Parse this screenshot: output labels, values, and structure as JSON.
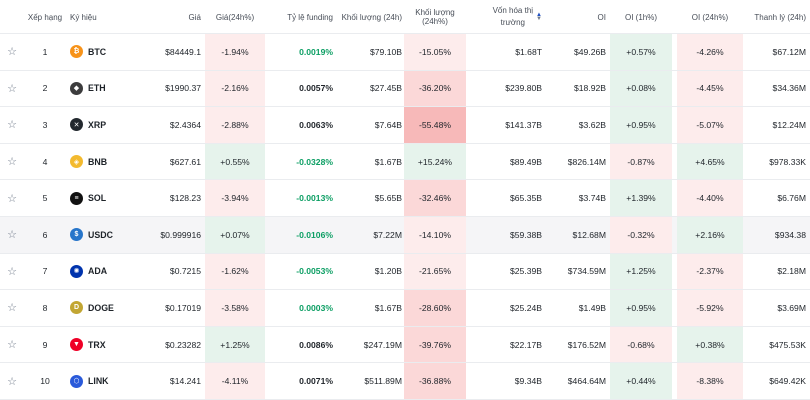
{
  "headers": {
    "rank": "Xếp hạng",
    "symbol": "Ký hiệu",
    "price": "Giá",
    "price_change": "Giá(24h%)",
    "funding": "Tỷ lệ funding",
    "volume": "Khối lượng (24h)",
    "volume_change": "Khối lượng (24h%)",
    "mcap_line1": "Vốn hóa thị",
    "mcap_line2": "trường",
    "oi": "OI",
    "oi_1h": "OI (1h%)",
    "oi_24h": "OI (24h%)",
    "liq": "Thanh lý (24h)"
  },
  "rows": [
    {
      "rank": "1",
      "symbol": "BTC",
      "icon": "₿",
      "color": "#f7931a",
      "price": "$84449.1",
      "pchg": "-1.94%",
      "funding": "0.0019%",
      "fund_color": "green",
      "vol": "$79.10B",
      "vchg": "-15.05%",
      "mcap": "$1.68T",
      "oi": "$49.26B",
      "oi1h": "+0.57%",
      "oi24h": "-4.26%",
      "liq": "$67.12M"
    },
    {
      "rank": "2",
      "symbol": "ETH",
      "icon": "◆",
      "color": "#3c3c3d",
      "price": "$1990.37",
      "pchg": "-2.16%",
      "funding": "0.0057%",
      "fund_color": "dark",
      "vol": "$27.45B",
      "vchg": "-36.20%",
      "mcap": "$239.80B",
      "oi": "$18.92B",
      "oi1h": "+0.08%",
      "oi24h": "-4.45%",
      "liq": "$34.36M"
    },
    {
      "rank": "3",
      "symbol": "XRP",
      "icon": "✕",
      "color": "#23292f",
      "price": "$2.4364",
      "pchg": "-2.88%",
      "funding": "0.0063%",
      "fund_color": "dark",
      "vol": "$7.64B",
      "vchg": "-55.48%",
      "mcap": "$141.37B",
      "oi": "$3.62B",
      "oi1h": "+0.95%",
      "oi24h": "-5.07%",
      "liq": "$12.24M"
    },
    {
      "rank": "4",
      "symbol": "BNB",
      "icon": "◈",
      "color": "#f3ba2f",
      "price": "$627.61",
      "pchg": "+0.55%",
      "funding": "-0.0328%",
      "fund_color": "green",
      "vol": "$1.67B",
      "vchg": "+15.24%",
      "mcap": "$89.49B",
      "oi": "$826.14M",
      "oi1h": "-0.87%",
      "oi24h": "+4.65%",
      "liq": "$978.33K"
    },
    {
      "rank": "5",
      "symbol": "SOL",
      "icon": "≡",
      "color": "#111111",
      "price": "$128.23",
      "pchg": "-3.94%",
      "funding": "-0.0013%",
      "fund_color": "green",
      "vol": "$5.65B",
      "vchg": "-32.46%",
      "mcap": "$65.35B",
      "oi": "$3.74B",
      "oi1h": "+1.39%",
      "oi24h": "-4.40%",
      "liq": "$6.76M"
    },
    {
      "rank": "6",
      "symbol": "USDC",
      "icon": "$",
      "color": "#2775ca",
      "price": "$0.999916",
      "pchg": "+0.07%",
      "funding": "-0.0106%",
      "fund_color": "green",
      "vol": "$7.22M",
      "vchg": "-14.10%",
      "mcap": "$59.38B",
      "oi": "$12.68M",
      "oi1h": "-0.32%",
      "oi24h": "+2.16%",
      "liq": "$934.38"
    },
    {
      "rank": "7",
      "symbol": "ADA",
      "icon": "✺",
      "color": "#0033ad",
      "price": "$0.7215",
      "pchg": "-1.62%",
      "funding": "-0.0053%",
      "fund_color": "green",
      "vol": "$1.20B",
      "vchg": "-21.65%",
      "mcap": "$25.39B",
      "oi": "$734.59M",
      "oi1h": "+1.25%",
      "oi24h": "-2.37%",
      "liq": "$2.18M"
    },
    {
      "rank": "8",
      "symbol": "DOGE",
      "icon": "D",
      "color": "#c2a633",
      "price": "$0.17019",
      "pchg": "-3.58%",
      "funding": "0.0003%",
      "fund_color": "green",
      "vol": "$1.67B",
      "vchg": "-28.60%",
      "mcap": "$25.24B",
      "oi": "$1.49B",
      "oi1h": "+0.95%",
      "oi24h": "-5.92%",
      "liq": "$3.69M"
    },
    {
      "rank": "9",
      "symbol": "TRX",
      "icon": "▼",
      "color": "#ef0027",
      "price": "$0.23282",
      "pchg": "+1.25%",
      "funding": "0.0086%",
      "fund_color": "dark",
      "vol": "$247.19M",
      "vchg": "-39.76%",
      "mcap": "$22.17B",
      "oi": "$176.52M",
      "oi1h": "-0.68%",
      "oi24h": "+0.38%",
      "liq": "$475.53K"
    },
    {
      "rank": "10",
      "symbol": "LINK",
      "icon": "⬡",
      "color": "#2a5ada",
      "price": "$14.241",
      "pchg": "-4.11%",
      "funding": "0.0071%",
      "fund_color": "dark",
      "vol": "$511.89M",
      "vchg": "-36.88%",
      "mcap": "$9.34B",
      "oi": "$464.64M",
      "oi1h": "+0.44%",
      "oi24h": "-8.38%",
      "liq": "$649.42K"
    }
  ]
}
